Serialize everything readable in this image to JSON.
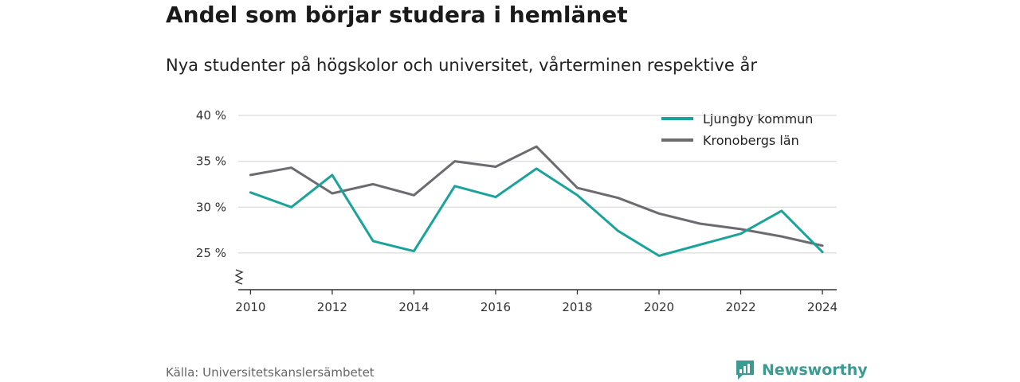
{
  "title": "Andel som börjar studera i hemlänet",
  "subtitle": "Nya studenter på högskolor och universitet, vårterminen respektive år",
  "source": "Källa: Universitetskanslersämbetet",
  "brand": "Newsworthy",
  "colors": {
    "series1": "#1aa39a",
    "series2": "#6b6b70",
    "grid": "#dcdcdc",
    "brand": "#3a9b92"
  },
  "chart_data": {
    "type": "line",
    "x": [
      2010,
      2011,
      2012,
      2013,
      2014,
      2015,
      2016,
      2017,
      2018,
      2019,
      2020,
      2021,
      2022,
      2023,
      2024
    ],
    "series": [
      {
        "name": "Ljungby kommun",
        "values": [
          31.6,
          30.0,
          33.5,
          26.3,
          25.2,
          32.3,
          31.1,
          34.2,
          31.3,
          27.4,
          24.7,
          25.9,
          27.1,
          29.6,
          25.1
        ]
      },
      {
        "name": "Kronobergs län",
        "values": [
          33.5,
          34.3,
          31.5,
          32.5,
          31.3,
          35.0,
          34.4,
          36.6,
          32.1,
          31.0,
          29.3,
          28.2,
          27.6,
          26.8,
          25.8
        ]
      }
    ],
    "y_ticks": [
      25,
      30,
      35,
      40
    ],
    "y_tick_labels": [
      "25 %",
      "30 %",
      "35 %",
      "40 %"
    ],
    "x_ticks": [
      2010,
      2012,
      2014,
      2016,
      2018,
      2020,
      2022,
      2024
    ],
    "x_tick_labels": [
      "2010",
      "2012",
      "2014",
      "2016",
      "2018",
      "2020",
      "2022",
      "2024"
    ],
    "ylim": [
      21,
      40
    ],
    "xlim": [
      2009.7,
      2024.35
    ],
    "axis_break": true,
    "grid": true,
    "legend_position": "top-right"
  }
}
